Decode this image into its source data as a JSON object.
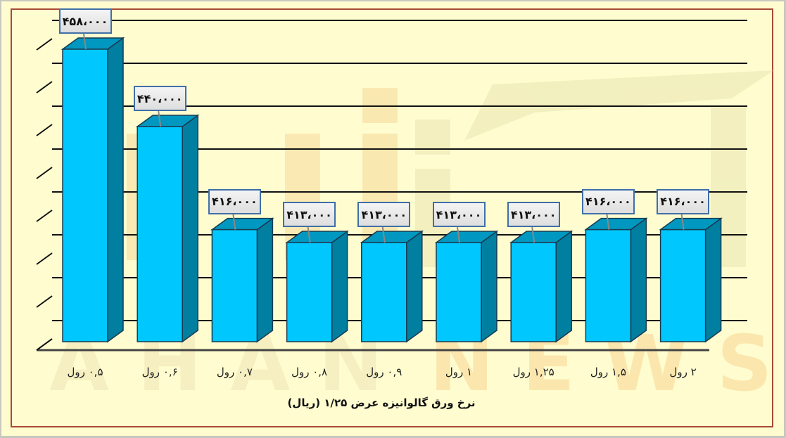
{
  "chart_data": {
    "type": "bar",
    "title": "نرخ ورق گالوانیزه عرض ۱/۲۵ (ریال)",
    "xlabel": "",
    "ylabel": "",
    "categories": [
      "۰,۵ رول",
      "۰,۶ رول",
      "۰,۷ رول",
      "۰,۸ رول",
      "۰,۹ رول",
      "۱ رول",
      "۱,۲۵ رول",
      "۱,۵ رول",
      "۲ رول"
    ],
    "values": [
      458000,
      440000,
      416000,
      413000,
      413000,
      413000,
      413000,
      416000,
      416000
    ],
    "data_labels": [
      "۴۵۸،۰۰۰",
      "۴۴۰،۰۰۰",
      "۴۱۶،۰۰۰",
      "۴۱۳،۰۰۰",
      "۴۱۳،۰۰۰",
      "۴۱۳،۰۰۰",
      "۴۱۳،۰۰۰",
      "۴۱۶،۰۰۰",
      "۴۱۶،۰۰۰"
    ],
    "grid": true,
    "legend": null,
    "style": "3d-column"
  },
  "colors": {
    "bar_front": "#00c8ff",
    "bar_side": "#007fa0",
    "bar_top": "#0098c0",
    "background": "#fffdd0",
    "frame": "#a94a35",
    "label_border": "#3f6fa8"
  },
  "watermark": {
    "logo_text": "آهن",
    "brand_text": "AHAN NEWS"
  }
}
